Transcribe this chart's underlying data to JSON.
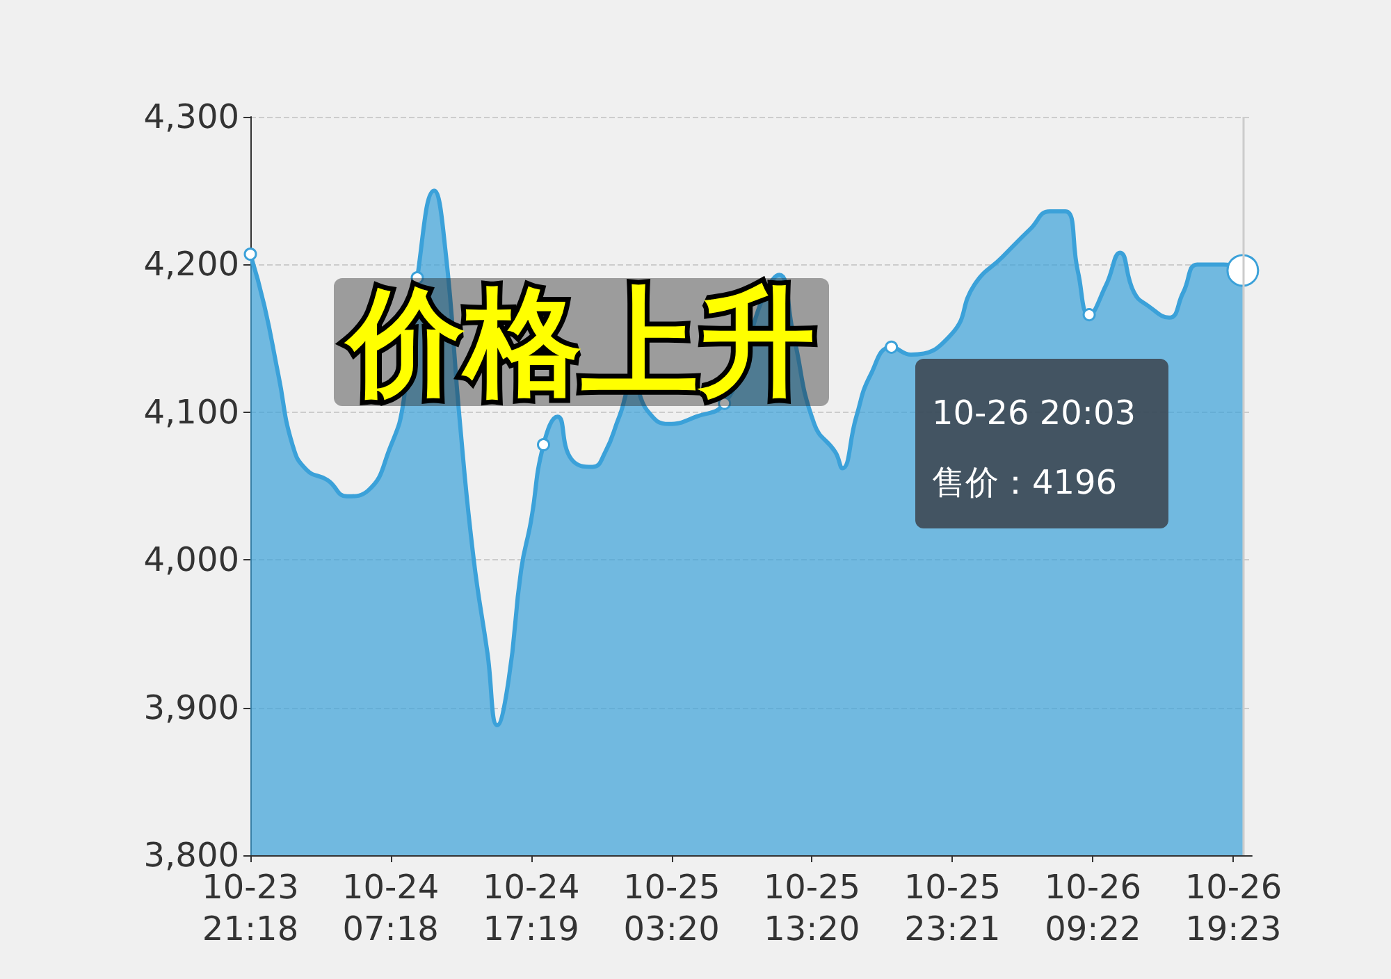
{
  "chart_data": {
    "type": "area",
    "x": [
      "--10-23T21:18",
      "--10-23T22:18",
      "--10-23T23:18",
      "--10-24T00:18",
      "--10-24T01:18",
      "--10-24T02:48",
      "--10-24T04:12",
      "--10-24T05:42",
      "--10-24T07:18",
      "--10-24T08:12",
      "--10-24T09:12",
      "--10-24T10:24",
      "--10-24T11:12",
      "--10-24T12:12",
      "--10-24T13:12",
      "--10-24T14:12",
      "--10-24T14:54",
      "--10-24T15:42",
      "--10-24T16:36",
      "--10-24T17:18",
      "--10-24T18:12",
      "--10-24T19:12",
      "--10-24T20:12",
      "--10-24T21:42",
      "--10-24T22:36",
      "--10-24T23:36",
      "--10-25T00:36",
      "--10-25T01:36",
      "--10-25T03:06",
      "--10-25T05:06",
      "--10-25T07:06",
      "--10-25T08:30",
      "--10-25T10:00",
      "--10-25T11:00",
      "--10-25T12:00",
      "--10-25T13:30",
      "--10-25T15:00",
      "--10-25T15:30",
      "--10-25T16:30",
      "--10-25T17:30",
      "--10-25T19:00",
      "--10-25T20:24",
      "--10-25T21:54",
      "--10-25T23:18",
      "--10-26T00:54",
      "--10-26T02:54",
      "--10-26T04:54",
      "--10-26T06:18",
      "--10-26T07:24",
      "--10-26T08:18",
      "--10-26T09:06",
      "--10-26T10:18",
      "--10-26T11:18",
      "--10-26T12:18",
      "--10-26T13:18",
      "--10-26T14:48",
      "--10-26T15:48",
      "--10-26T16:48",
      "--10-26T17:48",
      "--10-26T18:42",
      "--10-26T20:03"
    ],
    "series": [
      {
        "color": "#3ba1d9",
        "values": [
          4207,
          4172,
          4125,
          4078,
          4061,
          4054,
          4043,
          4047,
          4077,
          4106,
          4191,
          4250,
          4210,
          4097,
          4002,
          3937,
          3888,
          3918,
          3993,
          4026,
          4078,
          4097,
          4068,
          4063,
          4073,
          4097,
          4120,
          4101,
          4092,
          4097,
          4106,
          4139,
          4181,
          4193,
          4153,
          4092,
          4073,
          4062,
          4097,
          4125,
          4144,
          4139,
          null,
          4153,
          4186,
          4205,
          4224,
          4236,
          4236,
          4195,
          4166,
          4186,
          4208,
          4181,
          4172,
          4164,
          4181,
          4200,
          4200,
          4200,
          4196
        ]
      }
    ],
    "xlim": [
      "--10-23T21:18",
      "--10-26T20:42"
    ],
    "xticks": [
      {
        "value": "--10-23T21:18",
        "label": "10-23\n21:18"
      },
      {
        "value": "--10-24T07:18",
        "label": "10-24\n07:18"
      },
      {
        "value": "--10-24T17:19",
        "label": "10-24\n17:19"
      },
      {
        "value": "--10-25T03:20",
        "label": "10-25\n03:20"
      },
      {
        "value": "--10-25T13:20",
        "label": "10-25\n13:20"
      },
      {
        "value": "--10-25T23:21",
        "label": "10-25\n23:21"
      },
      {
        "value": "--10-26T09:22",
        "label": "10-26\n09:22"
      },
      {
        "value": "--10-26T19:23",
        "label": "10-26\n19:23"
      }
    ],
    "ylim": [
      3800,
      4300
    ],
    "yticks": [
      {
        "value": 3800,
        "label": "3,800"
      },
      {
        "value": 3900,
        "label": "3,900"
      },
      {
        "value": 4000,
        "label": "4,000"
      },
      {
        "value": 4100,
        "label": "4,100"
      },
      {
        "value": 4200,
        "label": "4,200"
      },
      {
        "value": 4300,
        "label": "4,300"
      }
    ],
    "grid": "y",
    "ref_lines": [
      {
        "axis": "x",
        "value": "--10-26T20:03",
        "color": "#cccccc"
      }
    ],
    "annotations": [
      "价格上升",
      "10-26 20:03\n售价：4196"
    ]
  }
}
